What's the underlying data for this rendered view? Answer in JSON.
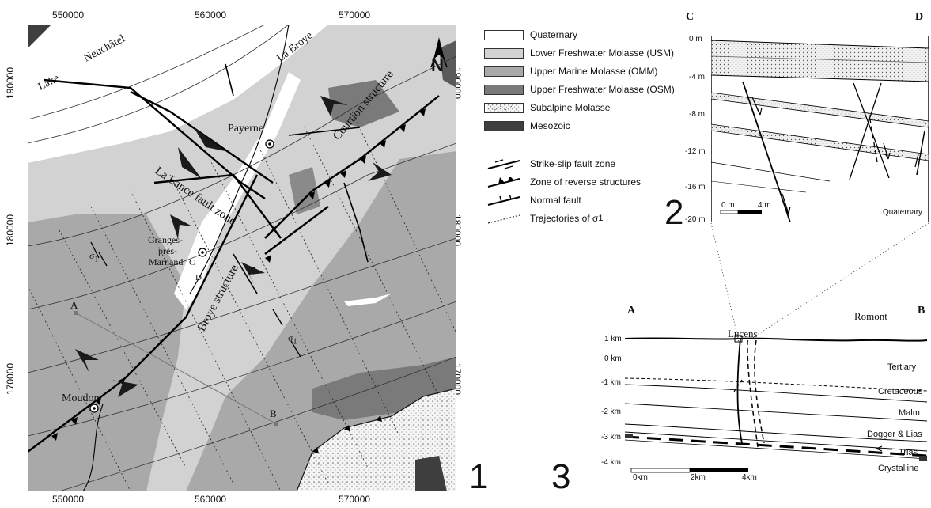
{
  "map1": {
    "panel_number": "1",
    "x_ticks": [
      "550000",
      "560000",
      "570000"
    ],
    "y_ticks": [
      "190000",
      "180000",
      "170000"
    ],
    "north": "N",
    "places": {
      "lake": "Lake",
      "neuchatel": "Neuchâtel",
      "la_broye": "La Broye",
      "payerne": "Payerne",
      "granges_1": "Granges-",
      "granges_2": "près-",
      "granges_3": "Marnand",
      "moudon": "Moudon",
      "la_lance": "La Lance fault zone",
      "courtion": "Courtion structure",
      "broye": "Broye structure",
      "sigma": "σ",
      "sigma_sub": "1",
      "pt_a": "A",
      "pt_b": "B",
      "pt_c": "C",
      "pt_d": "D"
    }
  },
  "legend": {
    "units": [
      {
        "label": "Quaternary",
        "color": "#ffffff"
      },
      {
        "label": "Lower Freshwater Molasse (USM)",
        "color": "#d2d2d2"
      },
      {
        "label": "Upper Marine Molasse (OMM)",
        "color": "#a9a9a9"
      },
      {
        "label": "Upper Freshwater Molasse (OSM)",
        "color": "#7a7a7a"
      },
      {
        "label": "Subalpine Molasse",
        "color": "#f2f2f2"
      },
      {
        "label": "Mesozoic",
        "color": "#3e3e3e"
      }
    ],
    "symbols": [
      {
        "label": "Strike-slip fault zone",
        "icon": "strike-slip-icon"
      },
      {
        "label": "Zone of reverse structures",
        "icon": "reverse-fault-icon"
      },
      {
        "label": "Normal fault",
        "icon": "normal-fault-icon"
      },
      {
        "label": "Trajectories of σ",
        "sub": "1",
        "icon": "trajectory-icon"
      }
    ]
  },
  "section2": {
    "panel_number": "2",
    "left_label": "C",
    "right_label": "D",
    "depths": [
      "0 m",
      "-4 m",
      "-8 m",
      "-12 m",
      "-16 m",
      "-20 m"
    ],
    "scale_0": "0 m",
    "scale_4": "4 m",
    "unit_label": "Quaternary"
  },
  "section3": {
    "panel_number": "3",
    "left_label": "A",
    "right_label": "B",
    "lucens": "Lucens",
    "romont": "Romont",
    "depths": [
      "1 km",
      "0 km",
      "-1 km",
      "-2 km",
      "-3 km",
      "-4 km"
    ],
    "layers": [
      "Tertiary",
      "Cretaceous",
      "Malm",
      "Dogger & Lias",
      "Trias",
      "Crystalline"
    ],
    "scale_0": "0km",
    "scale_2": "2km",
    "scale_4": "4km"
  }
}
